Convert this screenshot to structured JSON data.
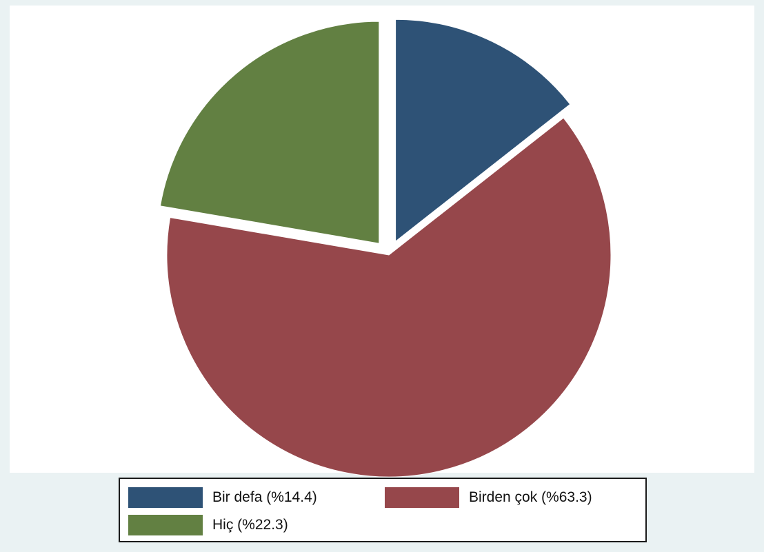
{
  "chart_data": {
    "type": "pie",
    "title": "",
    "start": "12 o'clock",
    "direction": "clockwise",
    "exploded": true,
    "slices": [
      {
        "label": "Bir defa (%14.4)",
        "value": 14.4,
        "color": "#2e5276"
      },
      {
        "label": "Birden çok (%63.3)",
        "value": 63.3,
        "color": "#96474b"
      },
      {
        "label": "Hiç (%22.3)",
        "value": 22.3,
        "color": "#628042"
      }
    ],
    "legend": {
      "placement": "bottom",
      "entries": [
        "Bir defa (%14.4)",
        "Birden çok (%63.3)",
        "Hiç (%22.3)"
      ]
    },
    "colors": {
      "plot_background": "#ffffff",
      "outer_background": "#eaf2f3",
      "legend_background": "#ffffff",
      "legend_border": "#1a1a1a"
    }
  }
}
